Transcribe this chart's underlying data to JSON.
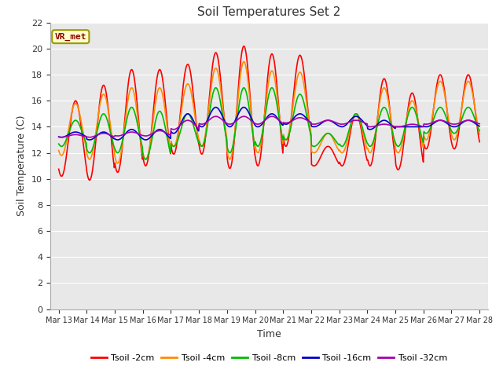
{
  "title": "Soil Temperatures Set 2",
  "xlabel": "Time",
  "ylabel": "Soil Temperature (C)",
  "ylim": [
    0,
    22
  ],
  "yticks": [
    0,
    2,
    4,
    6,
    8,
    10,
    12,
    14,
    16,
    18,
    20,
    22
  ],
  "x_labels": [
    "Mar 13",
    "Mar 14",
    "Mar 15",
    "Mar 16",
    "Mar 17",
    "Mar 18",
    "Mar 19",
    "Mar 20",
    "Mar 21",
    "Mar 22",
    "Mar 23",
    "Mar 24",
    "Mar 25",
    "Mar 26",
    "Mar 27",
    "Mar 28"
  ],
  "annotation_text": "VR_met",
  "annotation_color": "#8B0000",
  "annotation_bg": "#FFFFCC",
  "annotation_edge": "#999900",
  "fig_bg_color": "#FFFFFF",
  "plot_bg_color": "#E8E8E8",
  "grid_color": "#FFFFFF",
  "series": [
    {
      "label": "Tsoil -2cm",
      "color": "#FF0000",
      "linewidth": 1.2,
      "peaks": [
        16.0,
        17.2,
        18.4,
        18.4,
        18.8,
        19.7,
        20.2,
        19.6,
        19.5,
        12.5,
        15.0,
        17.7,
        16.6,
        18.0
      ],
      "troughs": [
        10.2,
        9.9,
        10.5,
        11.0,
        11.9,
        11.9,
        10.8,
        11.0,
        12.5,
        11.0,
        11.0,
        11.0,
        10.7,
        12.3
      ]
    },
    {
      "label": "Tsoil -4cm",
      "color": "#FF8C00",
      "linewidth": 1.2,
      "peaks": [
        15.8,
        16.5,
        17.0,
        17.0,
        17.3,
        18.5,
        19.0,
        18.3,
        18.2,
        13.5,
        15.0,
        17.0,
        16.0,
        17.5
      ],
      "troughs": [
        11.8,
        11.5,
        11.2,
        11.5,
        12.5,
        12.5,
        11.5,
        12.0,
        13.0,
        12.0,
        12.0,
        12.0,
        12.0,
        13.0
      ]
    },
    {
      "label": "Tsoil -8cm",
      "color": "#00BB00",
      "linewidth": 1.2,
      "peaks": [
        14.5,
        15.0,
        15.5,
        15.2,
        15.0,
        17.0,
        17.0,
        17.0,
        16.5,
        13.5,
        15.0,
        15.5,
        15.5,
        15.5
      ],
      "troughs": [
        12.5,
        12.0,
        12.0,
        11.5,
        12.5,
        12.5,
        12.0,
        12.5,
        13.0,
        12.5,
        12.5,
        12.5,
        12.5,
        13.5
      ]
    },
    {
      "label": "Tsoil -16cm",
      "color": "#0000CC",
      "linewidth": 1.2,
      "peaks": [
        13.6,
        13.6,
        13.8,
        13.8,
        15.0,
        15.5,
        15.5,
        15.0,
        15.0,
        14.5,
        14.8,
        14.5,
        14.0,
        14.5
      ],
      "troughs": [
        13.2,
        13.0,
        13.0,
        13.0,
        13.5,
        14.0,
        14.0,
        14.0,
        14.2,
        14.0,
        14.0,
        13.8,
        14.0,
        14.0
      ]
    },
    {
      "label": "Tsoil -32cm",
      "color": "#AA00AA",
      "linewidth": 1.2,
      "peaks": [
        13.4,
        13.5,
        13.6,
        13.7,
        14.5,
        14.8,
        14.8,
        14.8,
        14.7,
        14.5,
        14.5,
        14.2,
        14.2,
        14.5
      ],
      "troughs": [
        13.2,
        13.2,
        13.3,
        13.3,
        13.8,
        14.2,
        14.2,
        14.2,
        14.3,
        14.2,
        14.2,
        14.0,
        14.0,
        14.2
      ]
    }
  ]
}
